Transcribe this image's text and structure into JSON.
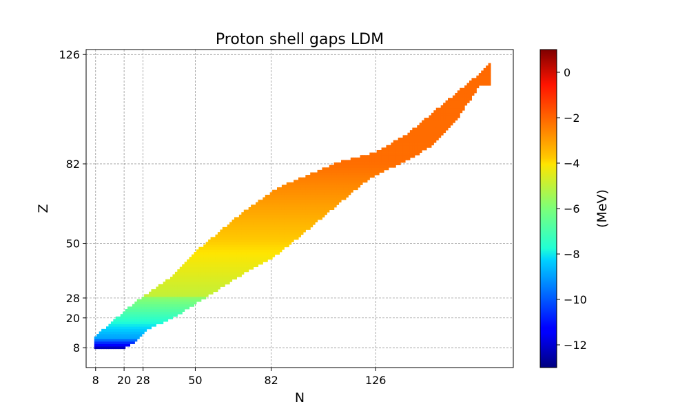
{
  "chart_data": {
    "type": "heatmap",
    "title": "Proton shell gaps LDM",
    "xlabel": "N",
    "ylabel": "Z",
    "xlim": [
      4,
      184
    ],
    "ylim": [
      0,
      128
    ],
    "xticks": [
      8,
      20,
      28,
      50,
      82,
      126
    ],
    "yticks": [
      8,
      20,
      28,
      50,
      82,
      126
    ],
    "grid": true,
    "grid_style": "dashed",
    "colormap": "jet",
    "colorbar": {
      "label": "(MeV)",
      "range": [
        -13,
        1
      ],
      "ticks": [
        0,
        -2,
        -4,
        -6,
        -8,
        -10,
        -12
      ],
      "tick_labels": [
        "0",
        "−2",
        "−4",
        "−6",
        "−8",
        "−10",
        "−12"
      ]
    },
    "band": {
      "description_z_min_max_per_n": "points filled for each N between z_min and z_max",
      "z_min": [
        [
          8,
          8
        ],
        [
          20,
          8
        ],
        [
          24,
          10
        ],
        [
          30,
          16
        ],
        [
          40,
          20
        ],
        [
          50,
          26
        ],
        [
          60,
          32
        ],
        [
          70,
          38
        ],
        [
          82,
          44
        ],
        [
          90,
          50
        ],
        [
          100,
          58
        ],
        [
          110,
          66
        ],
        [
          120,
          74
        ],
        [
          126,
          78
        ],
        [
          140,
          84
        ],
        [
          150,
          90
        ],
        [
          160,
          100
        ],
        [
          170,
          114
        ]
      ],
      "z_max": [
        [
          8,
          12
        ],
        [
          20,
          22
        ],
        [
          28,
          28
        ],
        [
          40,
          36
        ],
        [
          50,
          46
        ],
        [
          60,
          54
        ],
        [
          70,
          62
        ],
        [
          82,
          70
        ],
        [
          90,
          74
        ],
        [
          100,
          78
        ],
        [
          110,
          82
        ],
        [
          126,
          86
        ],
        [
          140,
          94
        ],
        [
          150,
          102
        ],
        [
          160,
          110
        ],
        [
          170,
          118
        ]
      ]
    },
    "values_description": "gap value rises with Z from about -12 MeV near Z=8 to about -2 MeV above Z=82"
  }
}
